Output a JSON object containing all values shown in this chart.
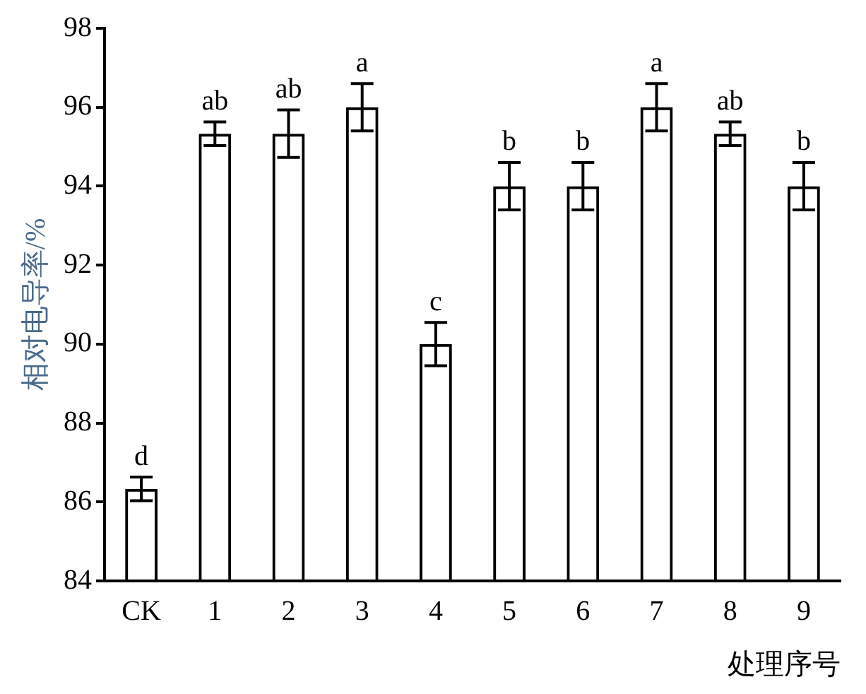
{
  "chart_data": {
    "type": "bar",
    "xlabel": "处理序号",
    "ylabel": "相对电导率/%",
    "categories": [
      "CK",
      "1",
      "2",
      "3",
      "4",
      "5",
      "6",
      "7",
      "8",
      "9"
    ],
    "values": [
      86.33,
      95.33,
      95.33,
      96.0,
      90.0,
      94.0,
      94.0,
      96.0,
      95.33,
      94.0
    ],
    "errors": [
      0.3,
      0.3,
      0.6,
      0.6,
      0.55,
      0.6,
      0.6,
      0.6,
      0.3,
      0.6
    ],
    "color": "#000000",
    "value_labels": [
      "d",
      "ab",
      "ab",
      "a",
      "c",
      "b",
      "b",
      "a",
      "ab",
      "b"
    ],
    "ylim": [
      84,
      98
    ],
    "yticks": [
      84,
      86,
      88,
      90,
      92,
      94,
      96,
      98
    ],
    "grid": false
  }
}
